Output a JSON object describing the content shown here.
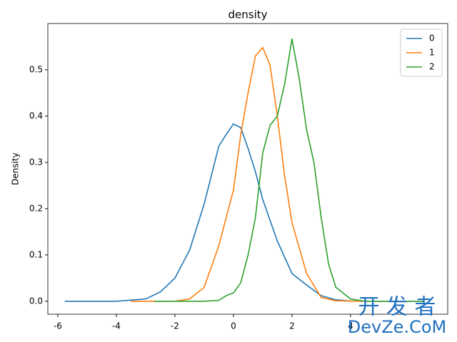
{
  "chart_data": {
    "type": "line",
    "title": "density",
    "y_label": "Density",
    "legend": "upper right",
    "xlim": [
      -6.34,
      7.32
    ],
    "ylim": [
      -0.028,
      0.6
    ],
    "xticks": [
      -6,
      -4,
      -2,
      0,
      2,
      4
    ],
    "yticks": [
      {
        "value": 0,
        "label": "0.0"
      },
      0.1,
      0.2,
      0.3,
      0.4,
      0.5
    ],
    "series": [
      {
        "name": "0",
        "color": "#1f77b4",
        "x": [
          -5.76,
          -4,
          -3,
          -2.5,
          -2,
          -1.5,
          -1,
          -0.5,
          -0.25,
          0,
          0.25,
          0.5,
          0.75,
          1,
          1.5,
          2,
          2.5,
          3,
          3.5,
          4,
          5,
          6.5
        ],
        "values": [
          0,
          0,
          0.005,
          0.02,
          0.05,
          0.11,
          0.21,
          0.335,
          0.36,
          0.383,
          0.375,
          0.33,
          0.28,
          0.22,
          0.13,
          0.06,
          0.035,
          0.012,
          0.003,
          0.0005,
          0,
          0
        ]
      },
      {
        "name": "1",
        "color": "#ff7f0e",
        "x": [
          -3.5,
          -2,
          -1.5,
          -1,
          -0.5,
          0,
          0.25,
          0.5,
          0.75,
          1,
          1.25,
          1.5,
          1.75,
          2,
          2.5,
          3,
          3.5,
          4.5,
          6
        ],
        "values": [
          0,
          0,
          0.005,
          0.03,
          0.12,
          0.24,
          0.36,
          0.45,
          0.53,
          0.548,
          0.51,
          0.4,
          0.27,
          0.17,
          0.06,
          0.008,
          0.001,
          0,
          0
        ]
      },
      {
        "name": "2",
        "color": "#2ca02c",
        "x": [
          -2.7,
          -1,
          -0.5,
          -0.25,
          0,
          0.25,
          0.5,
          0.75,
          1,
          1.25,
          1.5,
          1.75,
          2,
          2.25,
          2.5,
          2.75,
          3,
          3.25,
          3.5,
          4,
          4.5,
          6.5
        ],
        "values": [
          0,
          0,
          0.002,
          0.012,
          0.018,
          0.04,
          0.1,
          0.18,
          0.32,
          0.38,
          0.4,
          0.47,
          0.567,
          0.48,
          0.37,
          0.3,
          0.18,
          0.08,
          0.03,
          0.005,
          0,
          0
        ]
      }
    ],
    "watermark": [
      "开 发 者",
      "DevZe.CoM"
    ]
  }
}
